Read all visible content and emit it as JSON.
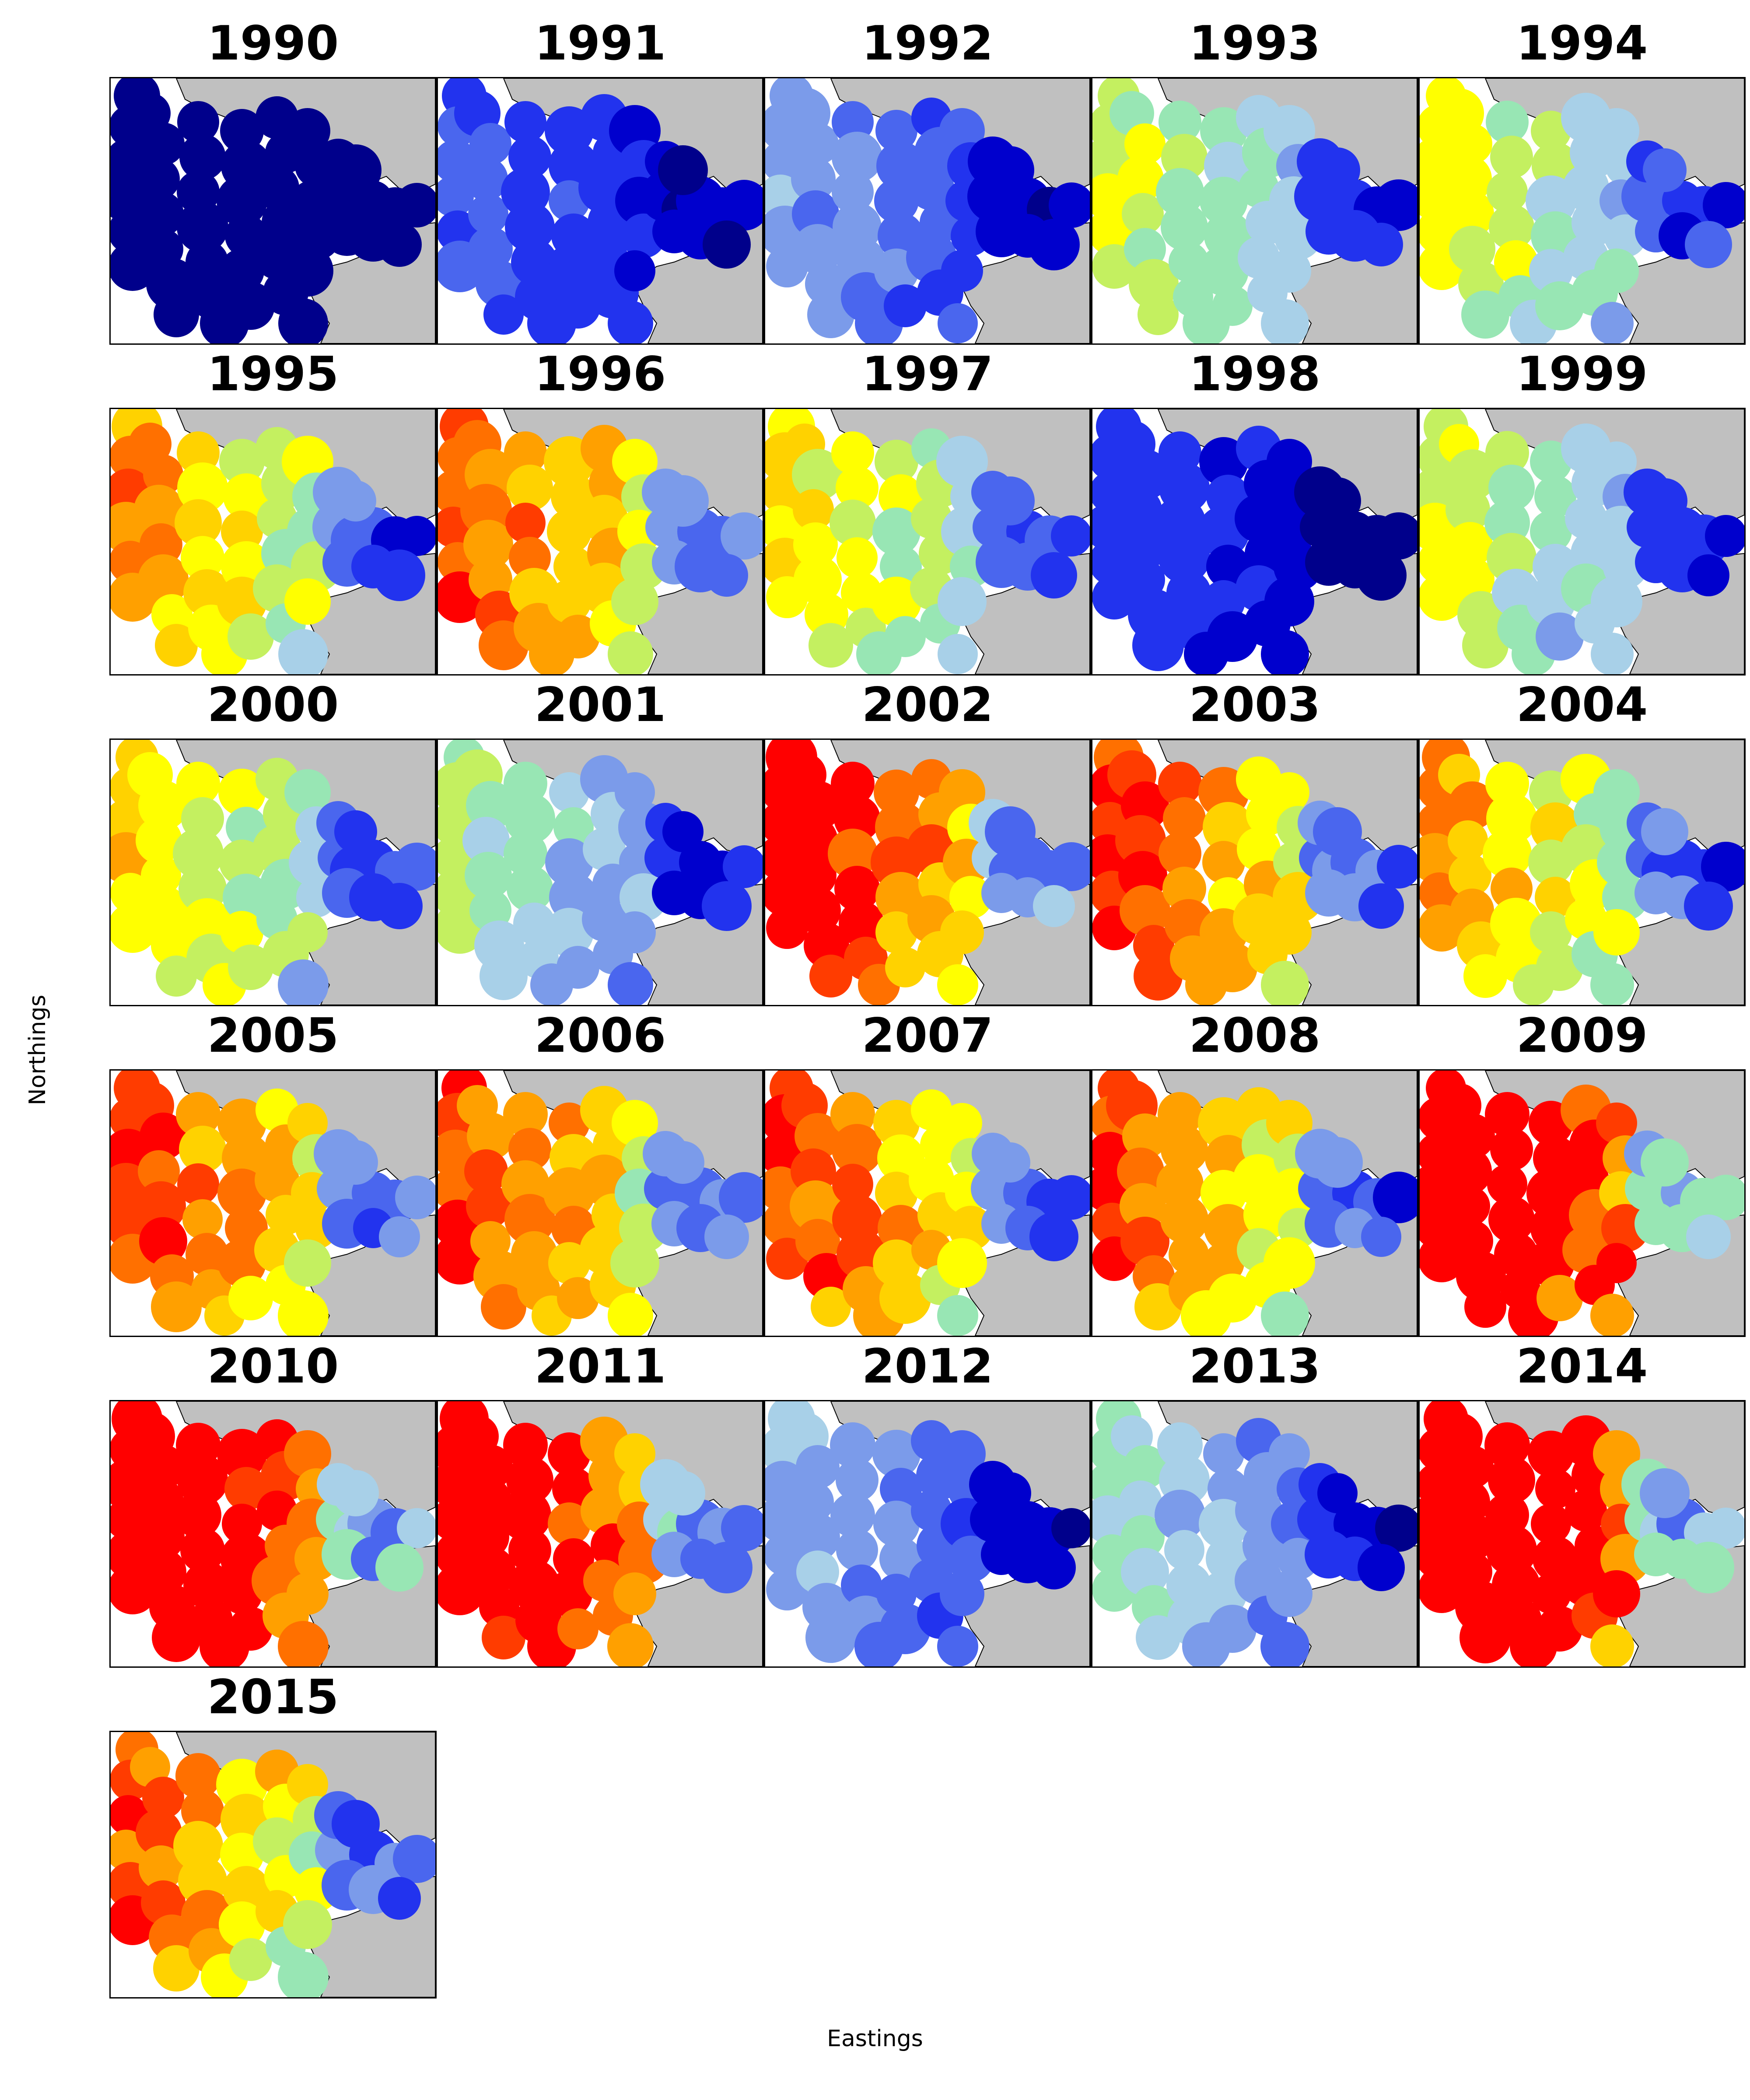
{
  "figure": {
    "xlabel": "Eastings",
    "ylabel": "Northings"
  },
  "colors": {
    "land": "#c0c0c0",
    "sea": "#ffffff",
    "coast": "#000000",
    "scale": [
      "#00008b",
      "#0000cd",
      "#2233ee",
      "#4a66ee",
      "#7b9bea",
      "#a8d0e8",
      "#98e6b4",
      "#c4f060",
      "#ffff00",
      "#ffd200",
      "#ffa000",
      "#ff7000",
      "#ff3c00",
      "#ff0000"
    ]
  },
  "panels": [
    {
      "title": "1990",
      "level": 0.04
    },
    {
      "title": "1991",
      "level": 0.16
    },
    {
      "title": "1992",
      "level": 0.22
    },
    {
      "title": "1993",
      "level": 0.38
    },
    {
      "title": "1994",
      "level": 0.4
    },
    {
      "title": "1995",
      "level": 0.52
    },
    {
      "title": "1996",
      "level": 0.6
    },
    {
      "title": "1997",
      "level": 0.44
    },
    {
      "title": "1998",
      "level": 0.12
    },
    {
      "title": "1999",
      "level": 0.38
    },
    {
      "title": "2000",
      "level": 0.46
    },
    {
      "title": "2001",
      "level": 0.34
    },
    {
      "title": "2002",
      "level": 0.7
    },
    {
      "title": "2003",
      "level": 0.62
    },
    {
      "title": "2004",
      "level": 0.52
    },
    {
      "title": "2005",
      "level": 0.62
    },
    {
      "title": "2006",
      "level": 0.6
    },
    {
      "title": "2007",
      "level": 0.62
    },
    {
      "title": "2008",
      "level": 0.58
    },
    {
      "title": "2009",
      "level": 0.86
    },
    {
      "title": "2010",
      "level": 0.86
    },
    {
      "title": "2011",
      "level": 0.78
    },
    {
      "title": "2012",
      "level": 0.24
    },
    {
      "title": "2013",
      "level": 0.3
    },
    {
      "title": "2014",
      "level": 0.86
    },
    {
      "title": "2015",
      "level": 0.58
    }
  ]
}
